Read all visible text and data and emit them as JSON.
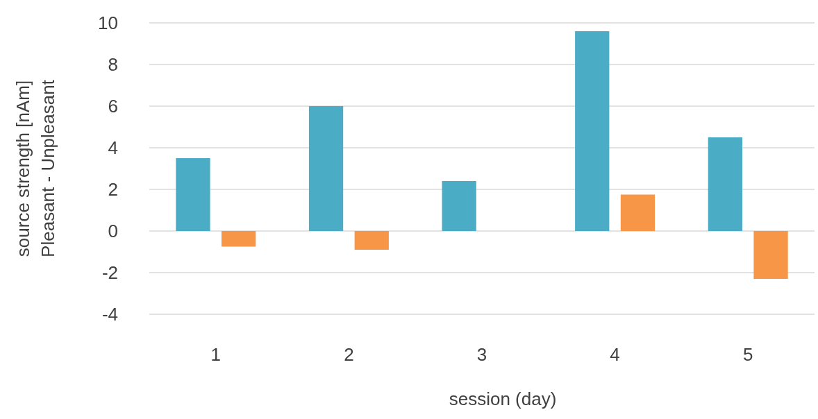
{
  "chart_data": {
    "type": "bar",
    "xlabel": "session (day)",
    "ylabel": "source strength [nAm]\nPleasant - Unpleasant",
    "categories": [
      "1",
      "2",
      "3",
      "4",
      "5"
    ],
    "series": [
      {
        "color": "#4bacc6",
        "values": [
          3.5,
          6.0,
          2.4,
          9.6,
          4.5
        ]
      },
      {
        "color": "#f79646",
        "values": [
          -0.75,
          -0.9,
          null,
          1.75,
          -2.3
        ]
      }
    ],
    "ylim": [
      -4,
      10
    ],
    "yticks": [
      -4,
      -2,
      0,
      2,
      4,
      6,
      8,
      10
    ],
    "grid": "y"
  }
}
